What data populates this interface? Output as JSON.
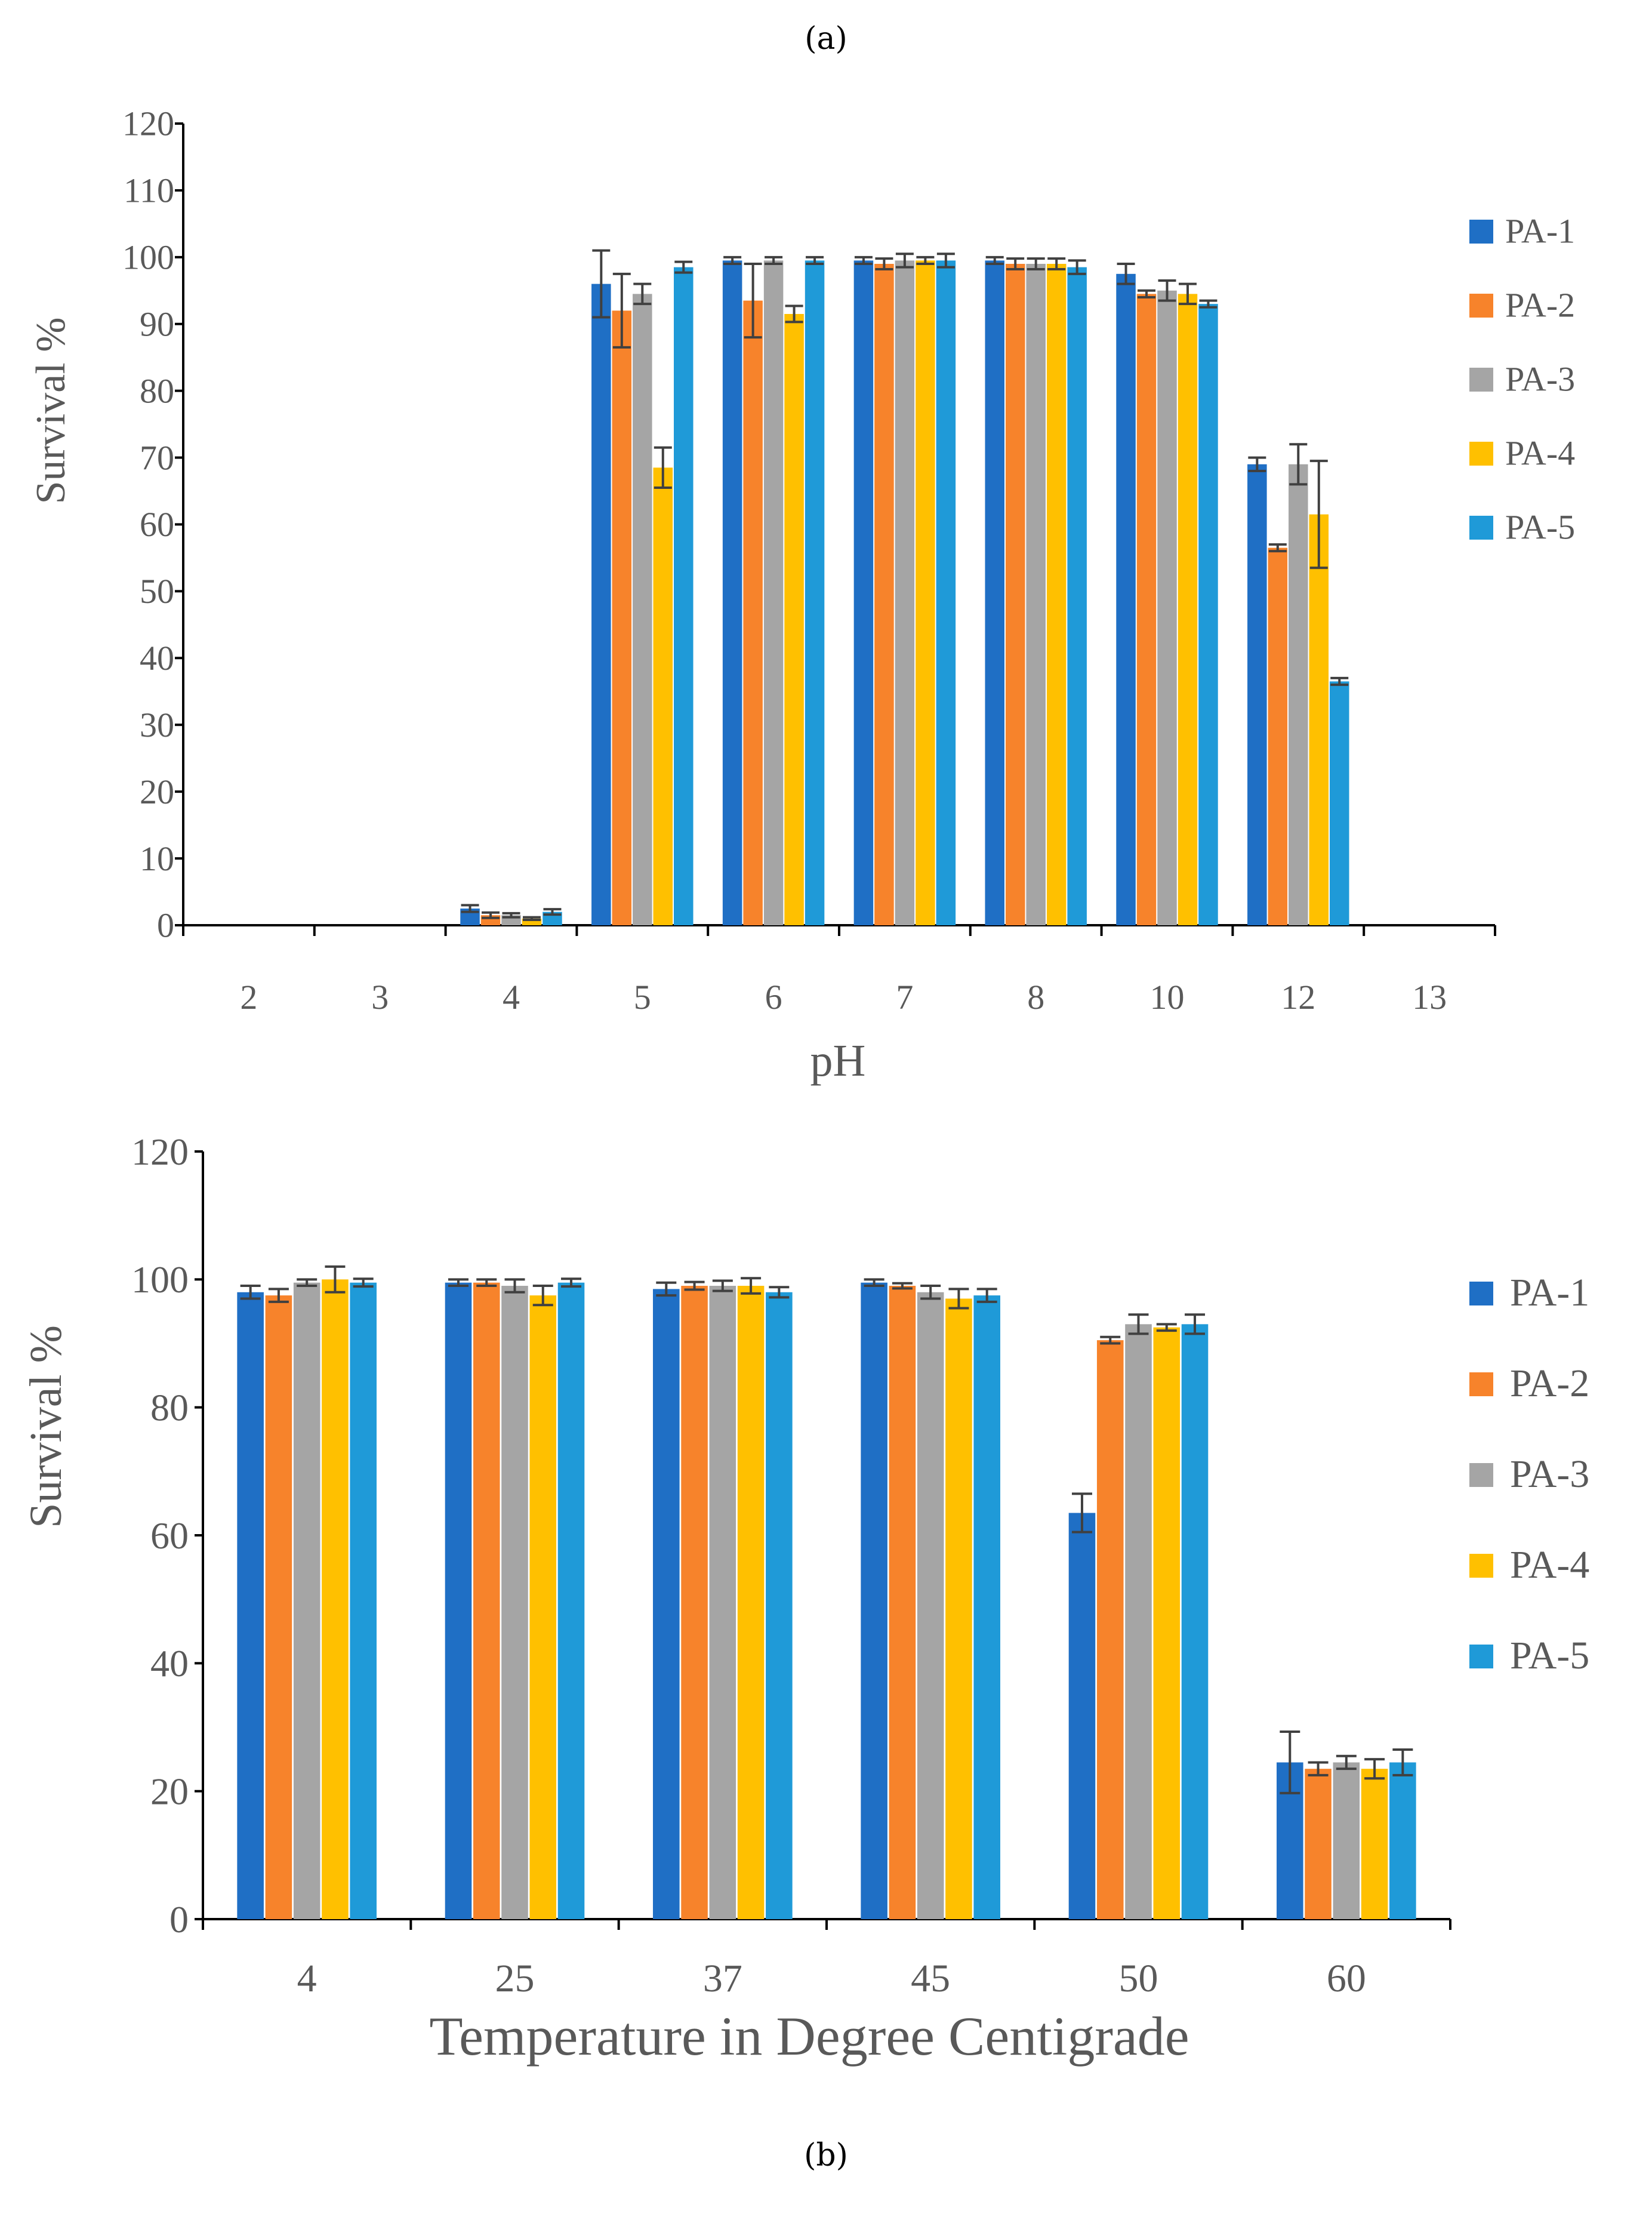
{
  "colors": {
    "PA-1": "#1f6fc5",
    "PA-2": "#f7832b",
    "PA-3": "#a5a5a5",
    "PA-4": "#ffc000",
    "PA-5": "#1f9ad8",
    "axis": "#000000",
    "error_bar": "#404040",
    "text": "#595959"
  },
  "chart_data": [
    {
      "panel_label": "(a)",
      "type": "bar",
      "xlabel": "pH",
      "ylabel": "Survival %",
      "ylim": [
        0,
        120
      ],
      "yticks": [
        0,
        10,
        20,
        30,
        40,
        50,
        60,
        70,
        80,
        90,
        100,
        110,
        120
      ],
      "grid": false,
      "legend_position": "right",
      "categories": [
        "2",
        "3",
        "4",
        "5",
        "6",
        "7",
        "8",
        "10",
        "12",
        "13"
      ],
      "series": [
        {
          "name": "PA-1",
          "values": [
            0,
            0,
            2.5,
            96,
            99.5,
            99.5,
            99.5,
            97.5,
            69,
            0
          ],
          "errors": [
            0,
            0,
            0.5,
            5,
            0.5,
            0.5,
            0.5,
            1.5,
            1,
            0
          ]
        },
        {
          "name": "PA-2",
          "values": [
            0,
            0,
            1.5,
            92,
            93.5,
            99,
            99,
            94.5,
            56.5,
            0
          ],
          "errors": [
            0,
            0,
            0.4,
            5.5,
            5.5,
            0.8,
            0.8,
            0.5,
            0.5,
            0
          ]
        },
        {
          "name": "PA-3",
          "values": [
            0,
            0,
            1.5,
            94.5,
            99.5,
            99.5,
            99,
            95,
            69,
            0
          ],
          "errors": [
            0,
            0,
            0.3,
            1.5,
            0.5,
            1,
            0.8,
            1.5,
            3,
            0
          ]
        },
        {
          "name": "PA-4",
          "values": [
            0,
            0,
            1,
            68.5,
            91.5,
            99.5,
            99,
            94.5,
            61.5,
            0
          ],
          "errors": [
            0,
            0,
            0.2,
            3,
            1.2,
            0.5,
            0.8,
            1.5,
            8,
            0
          ]
        },
        {
          "name": "PA-5",
          "values": [
            0,
            0,
            2,
            98.5,
            99.5,
            99.5,
            98.5,
            93,
            36.5,
            0
          ],
          "errors": [
            0,
            0,
            0.4,
            0.8,
            0.5,
            1,
            1,
            0.5,
            0.5,
            0
          ]
        }
      ]
    },
    {
      "panel_label": "(b)",
      "type": "bar",
      "xlabel": "Temperature in Degree Centigrade",
      "ylabel": "Survival %",
      "ylim": [
        0,
        120
      ],
      "yticks": [
        0,
        20,
        40,
        60,
        80,
        100,
        120
      ],
      "grid": false,
      "legend_position": "right",
      "categories": [
        "4",
        "25",
        "37",
        "45",
        "50",
        "60"
      ],
      "series": [
        {
          "name": "PA-1",
          "values": [
            98,
            99.5,
            98.5,
            99.5,
            63.5,
            24.5
          ],
          "errors": [
            1,
            0.5,
            1,
            0.5,
            3,
            4.8
          ]
        },
        {
          "name": "PA-2",
          "values": [
            97.5,
            99.5,
            99,
            99,
            90.5,
            23.5
          ],
          "errors": [
            1,
            0.5,
            0.6,
            0.4,
            0.5,
            1
          ]
        },
        {
          "name": "PA-3",
          "values": [
            99.5,
            99,
            99,
            98,
            93,
            24.5
          ],
          "errors": [
            0.5,
            1,
            0.8,
            1,
            1.5,
            1
          ]
        },
        {
          "name": "PA-4",
          "values": [
            100,
            97.5,
            99,
            97,
            92.5,
            23.5
          ],
          "errors": [
            2,
            1.5,
            1.2,
            1.5,
            0.5,
            1.5
          ]
        },
        {
          "name": "PA-5",
          "values": [
            99.5,
            99.5,
            98,
            97.5,
            93,
            24.5
          ],
          "errors": [
            0.6,
            0.6,
            0.8,
            1,
            1.5,
            2
          ]
        }
      ]
    }
  ]
}
